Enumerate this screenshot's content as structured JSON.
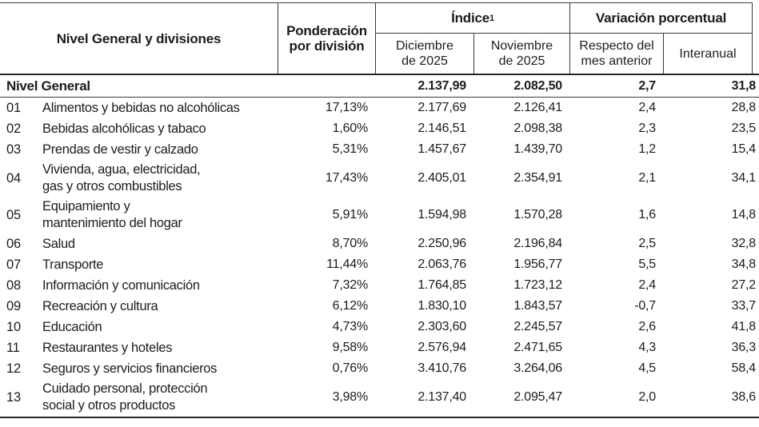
{
  "table": {
    "header": {
      "division_col": "Nivel General y divisiones",
      "weight_col": "Ponderación\npor división",
      "index_group": "Índice",
      "index_footnote": "1",
      "variation_group": "Variación porcentual",
      "december_col": "Diciembre\nde 2025",
      "november_col": "Noviembre\nde 2025",
      "mom_col": "Respecto del\nmes anterior",
      "yoy_col": "Interanual"
    },
    "total_row": {
      "label": "Nivel General",
      "weight": "",
      "dec": "2.137,99",
      "nov": "2.082,50",
      "mom": "2,7",
      "yoy": "31,8"
    },
    "rows": [
      {
        "code": "01",
        "label": "Alimentos y bebidas no alcohólicas",
        "weight": "17,13%",
        "dec": "2.177,69",
        "nov": "2.126,41",
        "mom": "2,4",
        "yoy": "28,8"
      },
      {
        "code": "02",
        "label": "Bebidas alcohólicas y tabaco",
        "weight": "1,60%",
        "dec": "2.146,51",
        "nov": "2.098,38",
        "mom": "2,3",
        "yoy": "23,5"
      },
      {
        "code": "03",
        "label": "Prendas de vestir y calzado",
        "weight": "5,31%",
        "dec": "1.457,67",
        "nov": "1.439,70",
        "mom": "1,2",
        "yoy": "15,4"
      },
      {
        "code": "04",
        "label": "Vivienda, agua, electricidad,\ngas y otros combustibles",
        "weight": "17,43%",
        "dec": "2.405,01",
        "nov": "2.354,91",
        "mom": "2,1",
        "yoy": "34,1"
      },
      {
        "code": "05",
        "label": "Equipamiento y\nmantenimiento del hogar",
        "weight": "5,91%",
        "dec": "1.594,98",
        "nov": "1.570,28",
        "mom": "1,6",
        "yoy": "14,8"
      },
      {
        "code": "06",
        "label": "Salud",
        "weight": "8,70%",
        "dec": "2.250,96",
        "nov": "2.196,84",
        "mom": "2,5",
        "yoy": "32,8"
      },
      {
        "code": "07",
        "label": "Transporte",
        "weight": "11,44%",
        "dec": "2.063,76",
        "nov": "1.956,77",
        "mom": "5,5",
        "yoy": "34,8"
      },
      {
        "code": "08",
        "label": "Información y comunicación",
        "weight": "7,32%",
        "dec": "1.764,85",
        "nov": "1.723,12",
        "mom": "2,4",
        "yoy": "27,2"
      },
      {
        "code": "09",
        "label": "Recreación y cultura",
        "weight": "6,12%",
        "dec": "1.830,10",
        "nov": "1.843,57",
        "mom": "-0,7",
        "yoy": "33,7"
      },
      {
        "code": "10",
        "label": "Educación",
        "weight": "4,73%",
        "dec": "2.303,60",
        "nov": "2.245,57",
        "mom": "2,6",
        "yoy": "41,8"
      },
      {
        "code": "11",
        "label": "Restaurantes y hoteles",
        "weight": "9,58%",
        "dec": "2.576,94",
        "nov": "2.471,65",
        "mom": "4,3",
        "yoy": "36,3"
      },
      {
        "code": "12",
        "label": "Seguros y servicios financieros",
        "weight": "0,76%",
        "dec": "3.410,76",
        "nov": "3.264,06",
        "mom": "4,5",
        "yoy": "58,4"
      },
      {
        "code": "13",
        "label": "Cuidado personal, protección\nsocial y otros productos",
        "weight": "3,98%",
        "dec": "2.137,40",
        "nov": "2.095,47",
        "mom": "2,0",
        "yoy": "38,6"
      }
    ]
  }
}
